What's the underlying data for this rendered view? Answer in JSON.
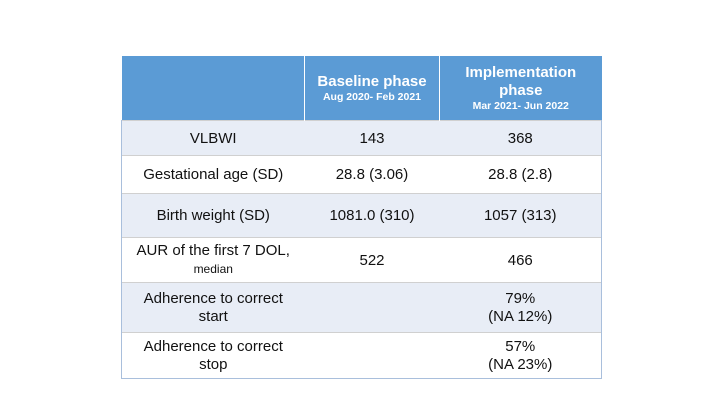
{
  "header": {
    "col1": "",
    "baseline_title": "Baseline phase",
    "baseline_dates": "Aug 2020- Feb 2021",
    "impl_title_1": "Implementation",
    "impl_title_2": "phase",
    "impl_dates": "Mar 2021- Jun 2022"
  },
  "rows": [
    {
      "label": "VLBWI",
      "baseline": "143",
      "impl": "368"
    },
    {
      "label": "Gestational age (SD)",
      "baseline": "28.8 (3.06)",
      "impl": "28.8 (2.8)"
    },
    {
      "label": "Birth weight (SD)",
      "baseline": "1081.0 (310)",
      "impl": "1057 (313)"
    },
    {
      "label_1": "AUR of the first 7 DOL,",
      "label_2": "median",
      "baseline": "522",
      "impl": "466"
    },
    {
      "label_1": "Adherence to correct",
      "label_2": "start",
      "baseline": "",
      "impl_1": "79%",
      "impl_2": "(NA 12%)"
    },
    {
      "label_1": "Adherence to correct",
      "label_2": "stop",
      "baseline": "",
      "impl_1": "57%",
      "impl_2": "(NA 23%)"
    }
  ]
}
